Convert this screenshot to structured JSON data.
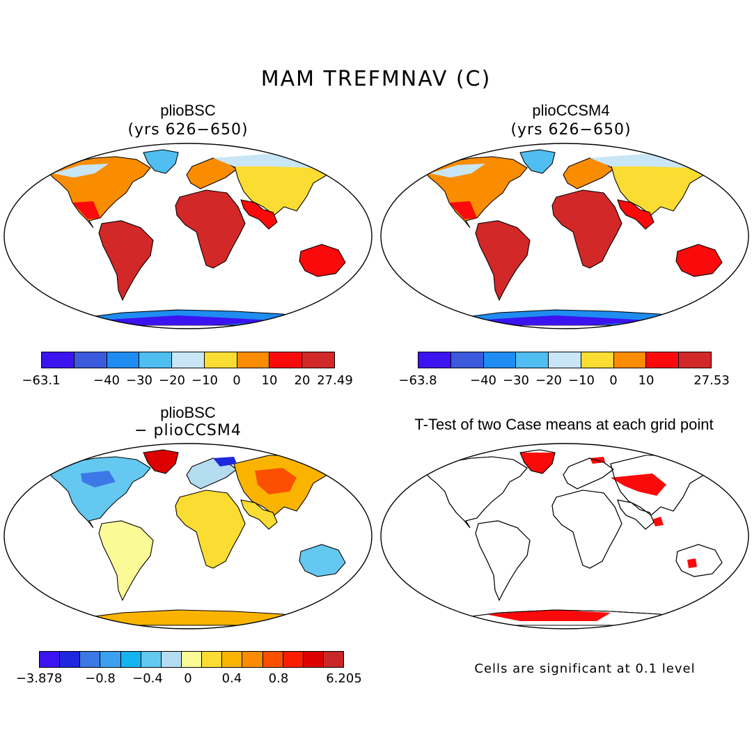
{
  "figure": {
    "title": "MAM TREFMNAV (C)"
  },
  "panels": {
    "top_left": {
      "title": "plioBSC",
      "subtitle": "(yrs 626−650)",
      "colorbar": {
        "colors": [
          "#3c14f0",
          "#3c5adc",
          "#1e8cf0",
          "#50bef0",
          "#c8e6f5",
          "#fadc32",
          "#fa8c00",
          "#fa0a0a",
          "#d22828"
        ],
        "labels": [
          "−63.1",
          "−40",
          "−30",
          "−20",
          "−10",
          "0",
          "10",
          "20",
          "27.49"
        ]
      }
    },
    "top_right": {
      "title": "plioCCSM4",
      "subtitle": "(yrs 626−650)",
      "colorbar": {
        "colors": [
          "#3c14f0",
          "#3c5adc",
          "#1e8cf0",
          "#50bef0",
          "#c8e6f5",
          "#fadc32",
          "#fa8c00",
          "#fa0a0a",
          "#d22828"
        ],
        "labels": [
          "−63.8",
          "−40",
          "−30",
          "−20",
          "−10",
          "0",
          "10",
          "27.53"
        ]
      }
    },
    "bottom_left": {
      "title": "plioBSC",
      "subtitle": "− plioCCSM4",
      "colorbar": {
        "colors": [
          "#3c14f0",
          "#1e28dc",
          "#3c78e6",
          "#3ca0f0",
          "#14b4f0",
          "#64c8f0",
          "#b4dcf0",
          "#fafa96",
          "#fadc32",
          "#fab400",
          "#fa8c00",
          "#fa5000",
          "#fa1e00",
          "#dc0000",
          "#c82828"
        ],
        "labels": [
          "−3.878",
          "−0.8",
          "−0.4",
          "0",
          "0.4",
          "0.8",
          "6.205"
        ]
      }
    },
    "bottom_right": {
      "title": "T-Test of two Case means at each grid point",
      "note": "Cells are significant at 0.1 level",
      "significant_color": "#fa0a0a"
    }
  }
}
